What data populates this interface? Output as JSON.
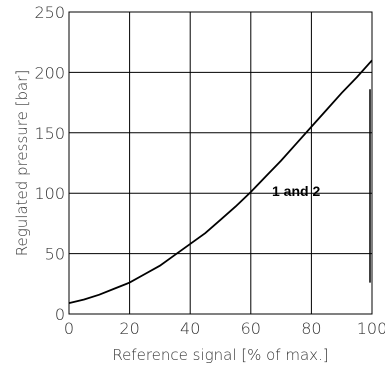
{
  "chart_data": {
    "type": "line",
    "title": "",
    "xlabel": "Reference signal [% of max.]",
    "ylabel": "Regulated pressure [bar]",
    "xlim": [
      0,
      100
    ],
    "ylim": [
      0,
      250
    ],
    "x_ticks": [
      "0",
      "20",
      "40",
      "60",
      "80",
      "100"
    ],
    "y_ticks": [
      "0",
      "50",
      "100",
      "150",
      "200",
      "250"
    ],
    "grid": true,
    "annotation": "1 and 2",
    "series": [
      {
        "x": [
          0,
          5,
          10,
          15,
          20,
          25,
          30,
          35,
          40,
          45,
          50,
          55,
          60,
          65,
          70,
          75,
          80,
          85,
          90,
          95,
          100
        ],
        "y": [
          9,
          12,
          16,
          21,
          26,
          33,
          40,
          49,
          58,
          67,
          78,
          89,
          101,
          114,
          127,
          141,
          155,
          169,
          183,
          196,
          210
        ]
      }
    ]
  }
}
